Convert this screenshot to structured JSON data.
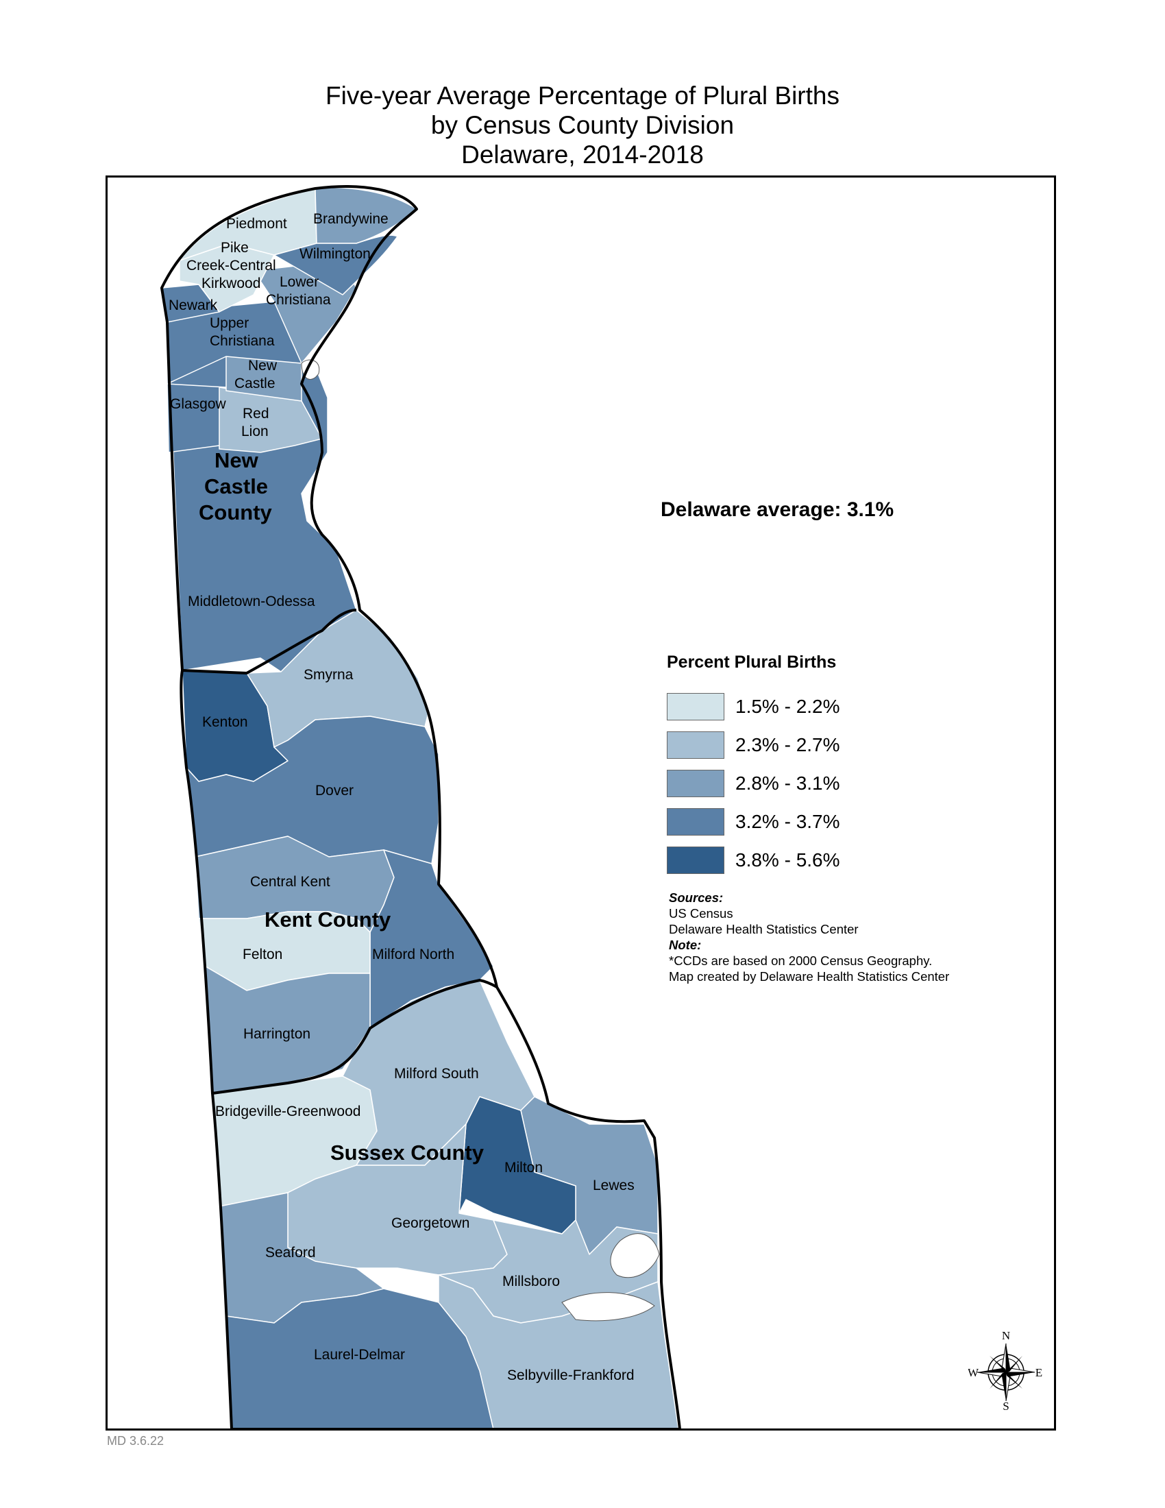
{
  "title": {
    "line1": "Five-year Average Percentage of Plural Births",
    "line2": "by Census County Division",
    "line3": "Delaware, 2014-2018"
  },
  "state_average": "Delaware average: 3.1%",
  "legend": {
    "title": "Percent Plural Births",
    "classes": [
      {
        "label": "1.5% - 2.2%",
        "color": "#d3e4ea"
      },
      {
        "label": "2.3% - 2.7%",
        "color": "#a6bfd3"
      },
      {
        "label": "2.8% - 3.1%",
        "color": "#7f9fbd"
      },
      {
        "label": "3.2% - 3.7%",
        "color": "#5a80a7"
      },
      {
        "label": "3.8% - 5.6%",
        "color": "#2f5d8a"
      }
    ]
  },
  "counties": {
    "new_castle": [
      "New",
      "Castle",
      "County"
    ],
    "kent": "Kent County",
    "sussex": "Sussex County"
  },
  "divisions": {
    "piedmont": "Piedmont",
    "brandywine": "Brandywine",
    "wilmington": "Wilmington",
    "pike_creek_central_kirkwood": [
      "Pike",
      "Creek-Central",
      "Kirkwood"
    ],
    "lower_christiana": [
      "Lower",
      "Christiana"
    ],
    "newark": "Newark",
    "upper_christiana": [
      "Upper",
      "Christiana"
    ],
    "new_castle": [
      "New",
      "Castle"
    ],
    "glasgow": "Glasgow",
    "red_lion": [
      "Red",
      "Lion"
    ],
    "middletown_odessa": "Middletown-Odessa",
    "smyrna": "Smyrna",
    "kenton": "Kenton",
    "dover": "Dover",
    "central_kent": "Central Kent",
    "felton": "Felton",
    "milford_north": "Milford North",
    "harrington": "Harrington",
    "milford_south": "Milford South",
    "bridgeville_greenwood": "Bridgeville-Greenwood",
    "milton": "Milton",
    "lewes": "Lewes",
    "georgetown": "Georgetown",
    "seaford": "Seaford",
    "millsboro": "Millsboro",
    "laurel_delmar": "Laurel-Delmar",
    "selbyville_frankford": "Selbyville-Frankford"
  },
  "notes": {
    "sources_heading": "Sources:",
    "sources": [
      "US Census",
      "Delaware Health Statistics Center"
    ],
    "note_heading": "Note:",
    "notes": [
      "*CCDs are based on 2000 Census Geography.",
      "Map created by Delaware Health Statistics Center"
    ]
  },
  "compass": {
    "n": "N",
    "s": "S",
    "e": "E",
    "w": "W"
  },
  "stamp": "MD 3.6.22"
}
